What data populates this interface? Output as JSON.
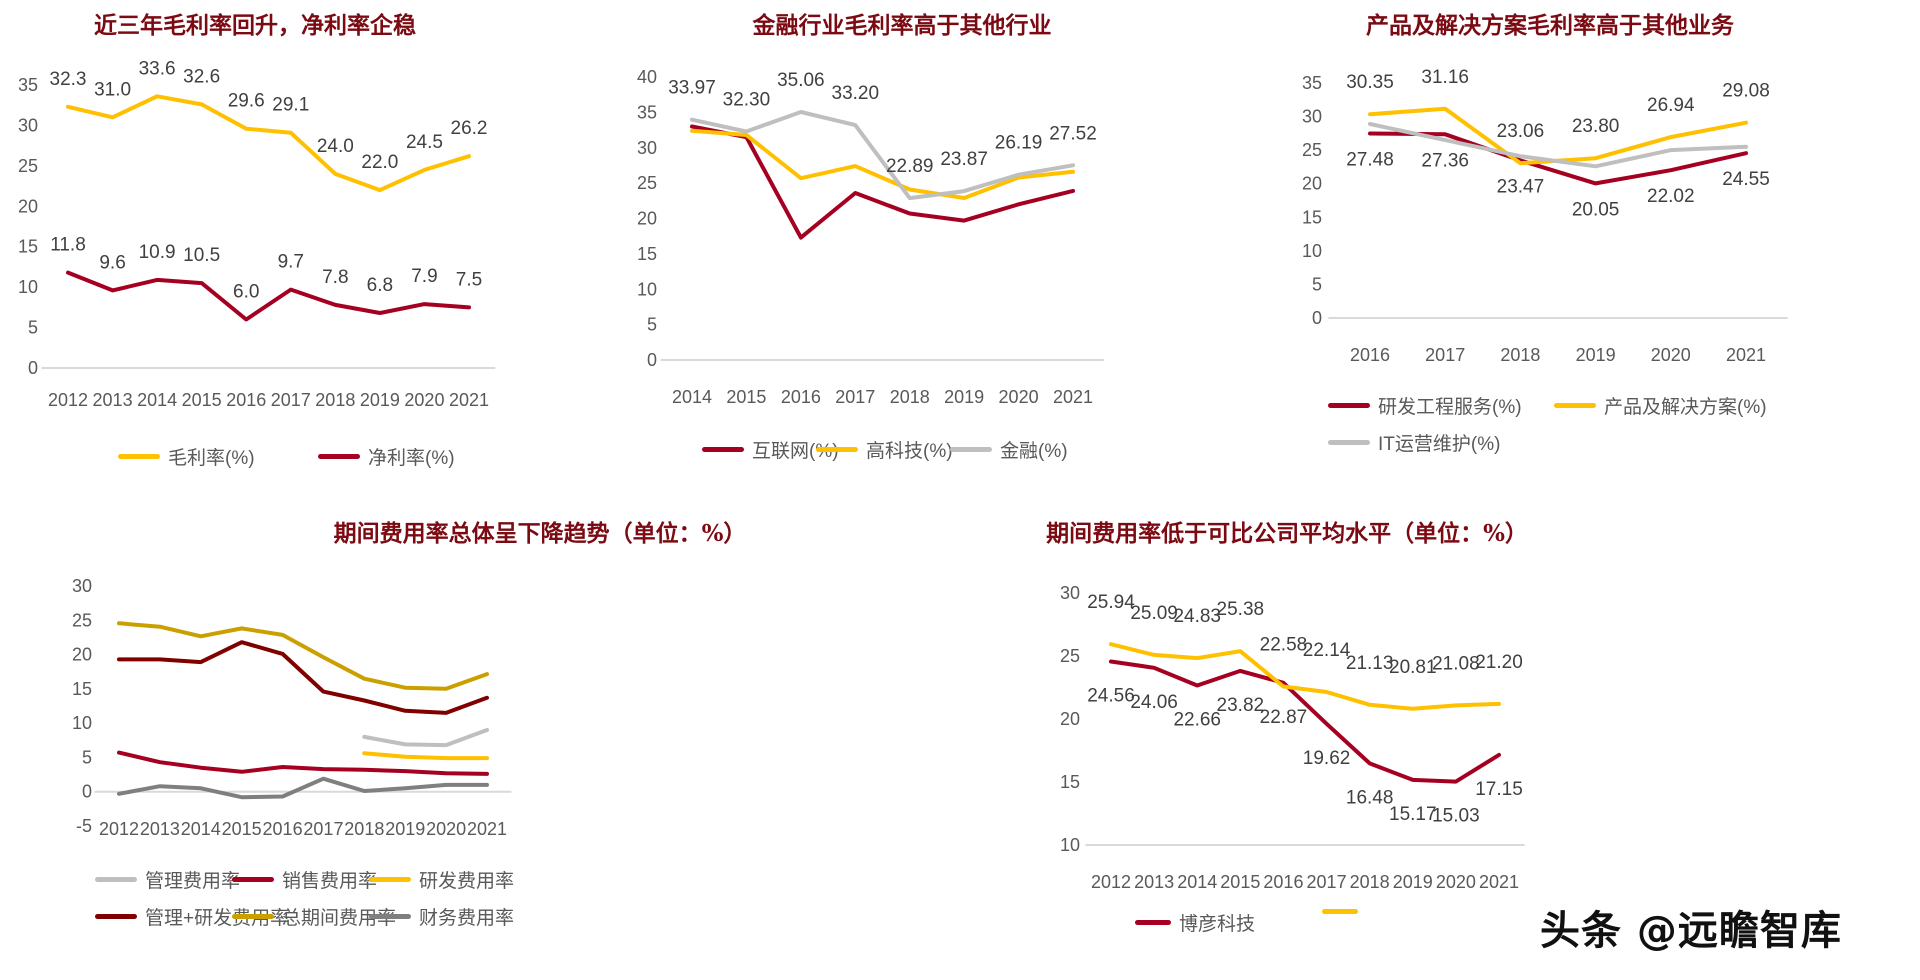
{
  "watermark": "头条 @远瞻智库",
  "chart_data": [
    {
      "type": "line",
      "title": "近三年毛利率回升，净利率企稳",
      "categories": [
        "2012",
        "2013",
        "2014",
        "2015",
        "2016",
        "2017",
        "2018",
        "2019",
        "2020",
        "2021"
      ],
      "ylim": [
        0,
        35
      ],
      "yticks": [
        "0",
        "5",
        "10",
        "15",
        "20",
        "25",
        "30",
        "35"
      ],
      "legend": "bottom",
      "series": [
        {
          "name": "毛利率(%)",
          "color": "#FFC000",
          "values": [
            32.3,
            31.0,
            33.6,
            32.6,
            29.6,
            29.1,
            24.0,
            22.0,
            24.5,
            26.2
          ],
          "decimals": 1
        },
        {
          "name": "净利率(%)",
          "color": "#A50021",
          "values": [
            11.8,
            9.6,
            10.9,
            10.5,
            6.0,
            9.7,
            7.8,
            6.8,
            7.9,
            7.5
          ],
          "decimals": 1
        }
      ]
    },
    {
      "type": "line",
      "title": "金融行业毛利率高于其他行业",
      "categories": [
        "2014",
        "2015",
        "2016",
        "2017",
        "2018",
        "2019",
        "2020",
        "2021"
      ],
      "ylim": [
        0,
        40
      ],
      "yticks": [
        "0",
        "5",
        "10",
        "15",
        "20",
        "25",
        "30",
        "35",
        "40"
      ],
      "legend": "bottom",
      "series": [
        {
          "name": "互联网(%)",
          "color": "#A50021",
          "values": [
            33.0,
            31.5,
            17.3,
            23.6,
            20.7,
            19.7,
            22.0,
            23.9
          ]
        },
        {
          "name": "高科技(%)",
          "color": "#FFC000",
          "values": [
            32.4,
            31.8,
            25.7,
            27.4,
            24.1,
            22.9,
            25.8,
            26.6
          ]
        },
        {
          "name": "金融(%)",
          "color": "#BFBFBF",
          "values": [
            33.97,
            32.3,
            35.06,
            33.2,
            22.89,
            23.87,
            26.19,
            27.52
          ],
          "decimals": 2
        }
      ]
    },
    {
      "type": "line",
      "title": "产品及解决方案毛利率高于其他业务",
      "categories": [
        "2016",
        "2017",
        "2018",
        "2019",
        "2020",
        "2021"
      ],
      "ylim": [
        0,
        35
      ],
      "yticks": [
        "0",
        "5",
        "10",
        "15",
        "20",
        "25",
        "30",
        "35"
      ],
      "legend": "bottom",
      "series": [
        {
          "name": "研发工程服务(%)",
          "color": "#A50021",
          "values": [
            27.48,
            27.36,
            23.47,
            20.05,
            22.02,
            24.55
          ],
          "decimals": 2
        },
        {
          "name": "产品及解决方案(%)",
          "color": "#FFC000",
          "values": [
            30.35,
            31.16,
            23.06,
            23.8,
            26.94,
            29.08
          ],
          "decimals": 2
        },
        {
          "name": "IT运营维护(%)",
          "color": "#BFBFBF",
          "values": [
            28.9,
            26.5,
            24.1,
            22.6,
            25.0,
            25.5
          ]
        }
      ]
    },
    {
      "type": "line",
      "title": "期间费用率总体呈下降趋势（单位：%）",
      "categories": [
        "2012",
        "2013",
        "2014",
        "2015",
        "2016",
        "2017",
        "2018",
        "2019",
        "2020",
        "2021"
      ],
      "ylim": [
        -5,
        30
      ],
      "yticks": [
        "-5",
        "0",
        "5",
        "10",
        "15",
        "20",
        "25",
        "30"
      ],
      "legend": "bottom",
      "series": [
        {
          "name": "管理费用率",
          "color": "#BFBFBF",
          "values": [
            null,
            null,
            null,
            null,
            null,
            null,
            8.0,
            6.9,
            6.8,
            9.0
          ]
        },
        {
          "name": "销售费用率",
          "color": "#A50021",
          "values": [
            5.7,
            4.3,
            3.5,
            2.9,
            3.6,
            3.3,
            3.2,
            3.0,
            2.7,
            2.6
          ]
        },
        {
          "name": "研发费用率",
          "color": "#FFC000",
          "values": [
            null,
            null,
            null,
            null,
            null,
            null,
            5.6,
            5.1,
            4.9,
            4.9
          ]
        },
        {
          "name": "管理+研发费用率",
          "color": "#800000",
          "values": [
            19.3,
            19.3,
            18.9,
            21.8,
            20.1,
            14.6,
            13.3,
            11.8,
            11.5,
            13.7
          ]
        },
        {
          "name": "总期间费用率",
          "color": "#C9A000",
          "values": [
            24.56,
            24.06,
            22.66,
            23.82,
            22.87,
            19.62,
            16.48,
            15.17,
            15.03,
            17.15
          ]
        },
        {
          "name": "财务费用率",
          "color": "#7F7F7F",
          "values": [
            -0.3,
            0.8,
            0.5,
            -0.8,
            -0.7,
            1.9,
            0.1,
            0.5,
            1.0,
            1.0
          ]
        }
      ]
    },
    {
      "type": "line",
      "title": "期间费用率低于可比公司平均水平（单位：%）",
      "categories": [
        "2012",
        "2013",
        "2014",
        "2015",
        "2016",
        "2017",
        "2018",
        "2019",
        "2020",
        "2021"
      ],
      "ylim": [
        10,
        30
      ],
      "yticks": [
        "10",
        "15",
        "20",
        "25",
        "30"
      ],
      "legend": "bottom",
      "series": [
        {
          "name": "博彦科技",
          "color": "#A50021",
          "values": [
            24.56,
            24.06,
            22.66,
            23.82,
            22.87,
            19.62,
            16.48,
            15.17,
            15.03,
            17.15
          ],
          "decimals": 2
        },
        {
          "color": "#FFC000",
          "values": [
            25.94,
            25.09,
            24.83,
            25.38,
            22.58,
            22.14,
            21.13,
            20.81,
            21.08,
            21.2
          ],
          "decimals": 2
        }
      ]
    }
  ]
}
